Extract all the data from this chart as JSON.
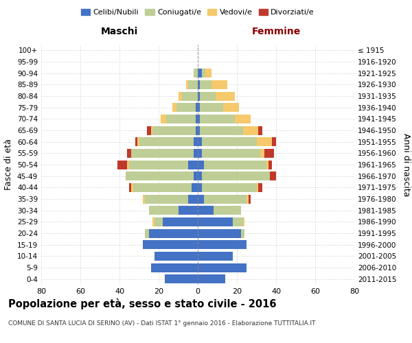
{
  "age_groups": [
    "0-4",
    "5-9",
    "10-14",
    "15-19",
    "20-24",
    "25-29",
    "30-34",
    "35-39",
    "40-44",
    "45-49",
    "50-54",
    "55-59",
    "60-64",
    "65-69",
    "70-74",
    "75-79",
    "80-84",
    "85-89",
    "90-94",
    "95-99",
    "100+"
  ],
  "birth_years": [
    "2011-2015",
    "2006-2010",
    "2001-2005",
    "1996-2000",
    "1991-1995",
    "1986-1990",
    "1981-1985",
    "1976-1980",
    "1971-1975",
    "1966-1970",
    "1961-1965",
    "1956-1960",
    "1951-1955",
    "1946-1950",
    "1941-1945",
    "1936-1940",
    "1931-1935",
    "1926-1930",
    "1921-1925",
    "1916-1920",
    "≤ 1915"
  ],
  "male": {
    "celibi": [
      17,
      24,
      22,
      28,
      25,
      18,
      10,
      5,
      3,
      2,
      5,
      2,
      2,
      1,
      1,
      1,
      0,
      0,
      0,
      0,
      0
    ],
    "coniugati": [
      0,
      0,
      0,
      0,
      2,
      4,
      15,
      22,
      30,
      35,
      30,
      32,
      28,
      22,
      15,
      10,
      8,
      5,
      2,
      0,
      0
    ],
    "vedovi": [
      0,
      0,
      0,
      0,
      0,
      1,
      0,
      1,
      1,
      0,
      1,
      0,
      1,
      1,
      3,
      2,
      2,
      1,
      0,
      0,
      0
    ],
    "divorziati": [
      0,
      0,
      0,
      0,
      0,
      0,
      0,
      0,
      1,
      0,
      5,
      2,
      1,
      2,
      0,
      0,
      0,
      0,
      0,
      0,
      0
    ]
  },
  "female": {
    "nubili": [
      14,
      25,
      18,
      25,
      22,
      18,
      8,
      3,
      2,
      2,
      3,
      2,
      2,
      1,
      1,
      1,
      1,
      1,
      2,
      0,
      0
    ],
    "coniugate": [
      0,
      0,
      0,
      0,
      2,
      5,
      14,
      22,
      28,
      35,
      32,
      30,
      28,
      22,
      18,
      12,
      8,
      6,
      2,
      0,
      0
    ],
    "vedove": [
      0,
      0,
      0,
      0,
      0,
      1,
      0,
      1,
      1,
      0,
      1,
      2,
      8,
      8,
      8,
      8,
      10,
      8,
      3,
      0,
      0
    ],
    "divorziate": [
      0,
      0,
      0,
      0,
      0,
      0,
      0,
      1,
      2,
      3,
      2,
      5,
      2,
      2,
      0,
      0,
      0,
      0,
      0,
      0,
      0
    ]
  },
  "colors": {
    "celibi": "#4472C4",
    "coniugati": "#BECE96",
    "vedovi": "#F5C96C",
    "divorziati": "#C0392B"
  },
  "xlim": 80,
  "xtick_step": 20,
  "title": "Popolazione per età, sesso e stato civile - 2016",
  "subtitle": "COMUNE DI SANTA LUCIA DI SERINO (AV) - Dati ISTAT 1° gennaio 2016 - Elaborazione TUTTITALIA.IT",
  "ylabel_left": "Fasce di età",
  "ylabel_right": "Anni di nascita",
  "header_left": "Maschi",
  "header_right": "Femmine",
  "legend_labels": [
    "Celibi/Nubili",
    "Coniugati/e",
    "Vedovi/e",
    "Divorziati/e"
  ]
}
